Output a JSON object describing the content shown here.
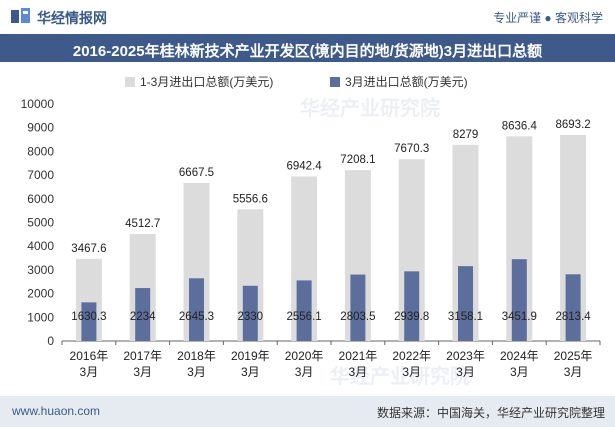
{
  "header": {
    "brand": "华经情报网",
    "tagline": "专业严谨 ● 客观科学"
  },
  "footer": {
    "site": "www.huaon.com",
    "source": "数据来源：中国海关，华经产业研究院整理"
  },
  "watermarks": [
    "华经产业研究院",
    "华经产业研究院"
  ],
  "colors": {
    "title_bg": "#3d5a8a",
    "series_total": "#dcdcdc",
    "series_month": "#5c6e9b",
    "footer_bg": "#e6ebf2"
  },
  "chart_data": {
    "type": "bar",
    "title": "2016-2025年桂林新技术产业开发区(境内目的地/货源地)3月进出口总额",
    "categories": [
      [
        "2016年",
        "3月"
      ],
      [
        "2017年",
        "3月"
      ],
      [
        "2018年",
        "3月"
      ],
      [
        "2019年",
        "3月"
      ],
      [
        "2020年",
        "3月"
      ],
      [
        "2021年",
        "3月"
      ],
      [
        "2022年",
        "3月"
      ],
      [
        "2023年",
        "3月"
      ],
      [
        "2024年",
        "3月"
      ],
      [
        "2025年",
        "3月"
      ]
    ],
    "series": [
      {
        "name": "1-3月进出口总额(万美元)",
        "values": [
          3467.6,
          4512.7,
          6667.5,
          5556.6,
          6942.4,
          7208.1,
          7670.3,
          8279,
          8636.4,
          8693.2
        ],
        "labels": [
          "3467.6",
          "4512.7",
          "6667.5",
          "5556.6",
          "6942.4",
          "7208.1",
          "7670.3",
          "8279",
          "8636.4",
          "8693.2"
        ]
      },
      {
        "name": "3月进出口总额(万美元)",
        "values": [
          1630.3,
          2234,
          2645.3,
          2330,
          2556.1,
          2803.5,
          2939.8,
          3158.1,
          3451.9,
          2813.4
        ],
        "labels": [
          "1630.3",
          "2234",
          "2645.3",
          "2330",
          "2556.1",
          "2803.5",
          "2939.8",
          "3158.1",
          "3451.9",
          "2813.4"
        ]
      }
    ],
    "ylim": [
      0,
      10000
    ],
    "yticks": [
      "0",
      "1000",
      "2000",
      "3000",
      "4000",
      "5000",
      "6000",
      "7000",
      "8000",
      "9000",
      "10000"
    ],
    "grid": false,
    "legend_position": "top-center"
  }
}
